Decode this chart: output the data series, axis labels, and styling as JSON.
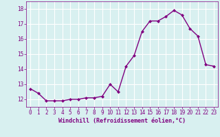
{
  "x": [
    0,
    1,
    2,
    3,
    4,
    5,
    6,
    7,
    8,
    9,
    10,
    11,
    12,
    13,
    14,
    15,
    16,
    17,
    18,
    19,
    20,
    21,
    22,
    23
  ],
  "y": [
    12.7,
    12.4,
    11.9,
    11.9,
    11.9,
    12.0,
    12.0,
    12.1,
    12.1,
    12.2,
    13.0,
    12.5,
    14.2,
    14.9,
    16.5,
    17.2,
    17.2,
    17.5,
    17.9,
    17.6,
    16.7,
    16.2,
    14.3,
    14.2
  ],
  "line_color": "#800080",
  "marker": "D",
  "marker_size": 2,
  "bg_color": "#d8f0f0",
  "grid_color": "#ffffff",
  "xlabel": "Windchill (Refroidissement éolien,°C)",
  "xlabel_color": "#800080",
  "tick_color": "#800080",
  "ylim": [
    11.5,
    18.5
  ],
  "xlim": [
    -0.5,
    23.5
  ],
  "yticks": [
    12,
    13,
    14,
    15,
    16,
    17,
    18
  ],
  "xticks": [
    0,
    1,
    2,
    3,
    4,
    5,
    6,
    7,
    8,
    9,
    10,
    11,
    12,
    13,
    14,
    15,
    16,
    17,
    18,
    19,
    20,
    21,
    22,
    23
  ]
}
